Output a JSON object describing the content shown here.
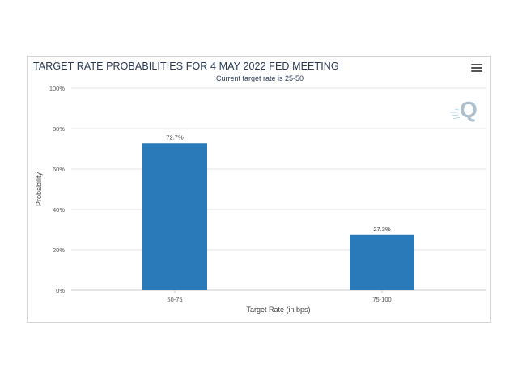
{
  "chart_data": {
    "type": "bar",
    "title": "TARGET RATE PROBABILITIES FOR 4 MAY 2022 FED MEETING",
    "subtitle": "Current target rate is 25-50",
    "categories": [
      "50-75",
      "75-100"
    ],
    "values": [
      72.7,
      27.3
    ],
    "value_labels": [
      "72.7%",
      "27.3%"
    ],
    "xlabel": "Target Rate (in bps)",
    "ylabel": "Probability",
    "ylim": [
      0,
      100
    ],
    "yticks": [
      0,
      20,
      40,
      60,
      80,
      100
    ],
    "ytick_labels": [
      "0%",
      "20%",
      "40%",
      "60%",
      "80%",
      "100%"
    ],
    "grid": true,
    "bar_color": "#2a7ab9"
  },
  "watermark_icon": "q-logo-icon",
  "menu_icon": "hamburger-menu-icon"
}
